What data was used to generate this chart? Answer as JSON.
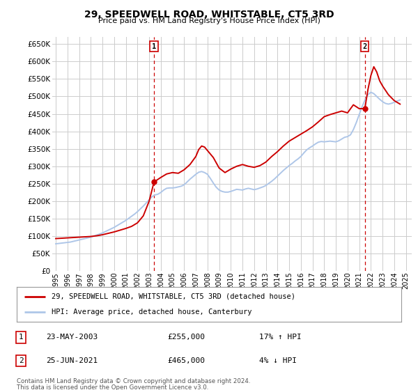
{
  "title": "29, SPEEDWELL ROAD, WHITSTABLE, CT5 3RD",
  "subtitle": "Price paid vs. HM Land Registry's House Price Index (HPI)",
  "ylim": [
    0,
    670000
  ],
  "yticks": [
    0,
    50000,
    100000,
    150000,
    200000,
    250000,
    300000,
    350000,
    400000,
    450000,
    500000,
    550000,
    600000,
    650000
  ],
  "xlim_start": 1994.7,
  "xlim_end": 2025.5,
  "xticks": [
    1995,
    1996,
    1997,
    1998,
    1999,
    2000,
    2001,
    2002,
    2003,
    2004,
    2005,
    2006,
    2007,
    2008,
    2009,
    2010,
    2011,
    2012,
    2013,
    2014,
    2015,
    2016,
    2017,
    2018,
    2019,
    2020,
    2021,
    2022,
    2023,
    2024,
    2025
  ],
  "hpi_color": "#aec6e8",
  "price_color": "#cc0000",
  "bg_color": "#ffffff",
  "grid_color": "#cccccc",
  "legend_label_price": "29, SPEEDWELL ROAD, WHITSTABLE, CT5 3RD (detached house)",
  "legend_label_hpi": "HPI: Average price, detached house, Canterbury",
  "annotation_1_label": "1",
  "annotation_1_date": "23-MAY-2003",
  "annotation_1_price": "£255,000",
  "annotation_1_hpi": "17% ↑ HPI",
  "annotation_2_label": "2",
  "annotation_2_date": "25-JUN-2021",
  "annotation_2_price": "£465,000",
  "annotation_2_hpi": "4% ↓ HPI",
  "footer_line1": "Contains HM Land Registry data © Crown copyright and database right 2024.",
  "footer_line2": "This data is licensed under the Open Government Licence v3.0.",
  "hpi_x": [
    1995.0,
    1995.25,
    1995.5,
    1995.75,
    1996.0,
    1996.25,
    1996.5,
    1996.75,
    1997.0,
    1997.25,
    1997.5,
    1997.75,
    1998.0,
    1998.25,
    1998.5,
    1998.75,
    1999.0,
    1999.25,
    1999.5,
    1999.75,
    2000.0,
    2000.25,
    2000.5,
    2000.75,
    2001.0,
    2001.25,
    2001.5,
    2001.75,
    2002.0,
    2002.25,
    2002.5,
    2002.75,
    2003.0,
    2003.25,
    2003.5,
    2003.75,
    2004.0,
    2004.25,
    2004.5,
    2004.75,
    2005.0,
    2005.25,
    2005.5,
    2005.75,
    2006.0,
    2006.25,
    2006.5,
    2006.75,
    2007.0,
    2007.25,
    2007.5,
    2007.75,
    2008.0,
    2008.25,
    2008.5,
    2008.75,
    2009.0,
    2009.25,
    2009.5,
    2009.75,
    2010.0,
    2010.25,
    2010.5,
    2010.75,
    2011.0,
    2011.25,
    2011.5,
    2011.75,
    2012.0,
    2012.25,
    2012.5,
    2012.75,
    2013.0,
    2013.25,
    2013.5,
    2013.75,
    2014.0,
    2014.25,
    2014.5,
    2014.75,
    2015.0,
    2015.25,
    2015.5,
    2015.75,
    2016.0,
    2016.25,
    2016.5,
    2016.75,
    2017.0,
    2017.25,
    2017.5,
    2017.75,
    2018.0,
    2018.25,
    2018.5,
    2018.75,
    2019.0,
    2019.25,
    2019.5,
    2019.75,
    2020.0,
    2020.25,
    2020.5,
    2020.75,
    2021.0,
    2021.25,
    2021.5,
    2021.75,
    2022.0,
    2022.25,
    2022.5,
    2022.75,
    2023.0,
    2023.25,
    2023.5,
    2023.75,
    2024.0,
    2024.25,
    2024.5
  ],
  "hpi_y": [
    78000,
    79000,
    80000,
    81000,
    82000,
    83000,
    85000,
    87000,
    89000,
    91000,
    93000,
    95000,
    97000,
    100000,
    103000,
    106000,
    109000,
    113000,
    117000,
    121000,
    125000,
    130000,
    135000,
    140000,
    145000,
    151000,
    157000,
    163000,
    170000,
    178000,
    186000,
    195000,
    204000,
    213000,
    218000,
    220000,
    225000,
    232000,
    237000,
    238000,
    238000,
    239000,
    241000,
    243000,
    247000,
    255000,
    263000,
    270000,
    277000,
    283000,
    285000,
    282000,
    277000,
    265000,
    252000,
    240000,
    232000,
    228000,
    226000,
    226000,
    228000,
    231000,
    234000,
    233000,
    232000,
    235000,
    237000,
    235000,
    233000,
    235000,
    238000,
    241000,
    245000,
    251000,
    257000,
    264000,
    272000,
    280000,
    288000,
    295000,
    302000,
    308000,
    315000,
    321000,
    328000,
    338000,
    347000,
    353000,
    358000,
    364000,
    369000,
    371000,
    370000,
    371000,
    372000,
    371000,
    370000,
    373000,
    378000,
    383000,
    385000,
    390000,
    405000,
    425000,
    448000,
    471000,
    490000,
    505000,
    512000,
    508000,
    500000,
    492000,
    485000,
    480000,
    478000,
    480000,
    483000,
    487000,
    490000
  ],
  "price_x": [
    1995.0,
    1995.5,
    1996.0,
    1996.5,
    1997.0,
    1997.5,
    1998.0,
    1998.5,
    1999.0,
    1999.5,
    2000.0,
    2000.5,
    2001.0,
    2001.5,
    2002.0,
    2002.5,
    2003.0,
    2003.42,
    2004.0,
    2004.5,
    2005.0,
    2005.5,
    2006.0,
    2006.5,
    2007.0,
    2007.25,
    2007.5,
    2007.75,
    2008.0,
    2008.5,
    2009.0,
    2009.5,
    2010.0,
    2010.5,
    2011.0,
    2011.5,
    2012.0,
    2012.5,
    2013.0,
    2013.5,
    2014.0,
    2014.5,
    2015.0,
    2015.5,
    2016.0,
    2016.5,
    2017.0,
    2017.5,
    2018.0,
    2018.5,
    2019.0,
    2019.5,
    2020.0,
    2020.5,
    2021.0,
    2021.48,
    2021.75,
    2022.0,
    2022.25,
    2022.5,
    2022.75,
    2023.0,
    2023.5,
    2024.0,
    2024.5
  ],
  "price_y": [
    93000,
    94000,
    95000,
    96000,
    97000,
    98000,
    99000,
    101000,
    104000,
    108000,
    112000,
    117000,
    122000,
    128000,
    138000,
    158000,
    200000,
    255000,
    268000,
    278000,
    282000,
    280000,
    290000,
    305000,
    328000,
    348000,
    358000,
    355000,
    345000,
    325000,
    295000,
    282000,
    292000,
    300000,
    305000,
    300000,
    297000,
    302000,
    312000,
    328000,
    342000,
    358000,
    372000,
    382000,
    392000,
    402000,
    413000,
    427000,
    442000,
    448000,
    453000,
    458000,
    453000,
    476000,
    465000,
    465000,
    520000,
    560000,
    585000,
    570000,
    545000,
    530000,
    505000,
    488000,
    478000
  ],
  "sale1_x": 2003.42,
  "sale1_y": 255000,
  "sale2_x": 2021.48,
  "sale2_y": 465000
}
